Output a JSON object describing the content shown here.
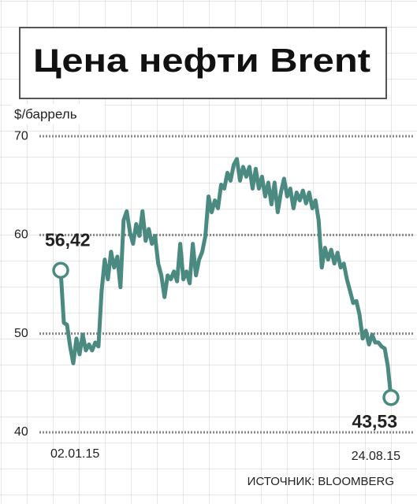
{
  "chart_data": {
    "type": "line",
    "title": "Цена нефти Brent",
    "y_label": "$/баррель",
    "source": "ИСТОЧНИК: BLOOMBERG",
    "color": "#4a8a80",
    "ylim": [
      39,
      71
    ],
    "yticks": [
      40,
      50,
      60,
      70
    ],
    "grid": true,
    "categories": [
      "02.01.15",
      null,
      null,
      null,
      null,
      null,
      null,
      null,
      null,
      null,
      null,
      null,
      null,
      null,
      null,
      null,
      null,
      null,
      null,
      null,
      null,
      null,
      null,
      null,
      null,
      null,
      null,
      null,
      null,
      null,
      null,
      null,
      null,
      null,
      null,
      null,
      null,
      null,
      null,
      null,
      null,
      null,
      null,
      null,
      null,
      null,
      null,
      null,
      null,
      null,
      null,
      null,
      null,
      null,
      null,
      null,
      null,
      null,
      null,
      null,
      null,
      null,
      null,
      null,
      null,
      null,
      null,
      null,
      null,
      null,
      null,
      null,
      null,
      null,
      null,
      null,
      null,
      null,
      null,
      null,
      null,
      null,
      null,
      null,
      null,
      null,
      null,
      null,
      null,
      null,
      null,
      null,
      null,
      null,
      null,
      null,
      null,
      null,
      null,
      null,
      null,
      null,
      null,
      null,
      null,
      "24.08.15"
    ],
    "values": [
      56.42,
      51.1,
      50.9,
      48.7,
      47.0,
      49.5,
      47.9,
      49.9,
      48.3,
      48.9,
      48.3,
      49.1,
      48.7,
      54.3,
      57.5,
      55.5,
      58.3,
      56.7,
      57.8,
      54.7,
      61.5,
      62.4,
      60.3,
      59.1,
      61.1,
      59.9,
      62.4,
      59.4,
      60.6,
      59.1,
      59.9,
      57.1,
      55.9,
      53.7,
      55.9,
      55.5,
      56.3,
      55.3,
      59.1,
      55.5,
      56.3,
      55.1,
      59.1,
      55.9,
      57.5,
      58.3,
      59.9,
      63.9,
      62.3,
      63.5,
      62.7,
      65.1,
      64.7,
      66.3,
      65.5,
      67.1,
      67.7,
      65.5,
      66.9,
      65.9,
      66.9,
      64.7,
      66.7,
      64.7,
      65.9,
      63.9,
      65.3,
      63.1,
      65.3,
      62.3,
      64.3,
      65.7,
      63.9,
      64.7,
      62.7,
      64.3,
      63.5,
      64.5,
      63.2,
      64.3,
      62.7,
      63.5,
      61.5,
      56.7,
      58.7,
      57.5,
      58.5,
      57.1,
      58.2,
      56.7,
      57.1,
      55.5,
      54.3,
      53.1,
      53.3,
      51.9,
      49.5,
      50.3,
      48.9,
      49.9,
      49.1,
      49.1,
      48.7,
      48.5,
      46.7,
      43.53
    ],
    "value_labels": [
      "56,42",
      null,
      null,
      null,
      null,
      null,
      null,
      null,
      null,
      null,
      null,
      null,
      null,
      null,
      null,
      null,
      null,
      null,
      null,
      null,
      null,
      null,
      null,
      null,
      null,
      null,
      null,
      null,
      null,
      null,
      null,
      null,
      null,
      null,
      null,
      null,
      null,
      null,
      null,
      null,
      null,
      null,
      null,
      null,
      null,
      null,
      null,
      null,
      null,
      null,
      null,
      null,
      null,
      null,
      null,
      null,
      null,
      null,
      null,
      null,
      null,
      null,
      null,
      null,
      null,
      null,
      null,
      null,
      null,
      null,
      null,
      null,
      null,
      null,
      null,
      null,
      null,
      null,
      null,
      null,
      null,
      null,
      null,
      null,
      null,
      null,
      null,
      null,
      null,
      null,
      null,
      null,
      null,
      null,
      null,
      null,
      null,
      null,
      null,
      null,
      null,
      null,
      null,
      null,
      null,
      "43,53"
    ]
  }
}
